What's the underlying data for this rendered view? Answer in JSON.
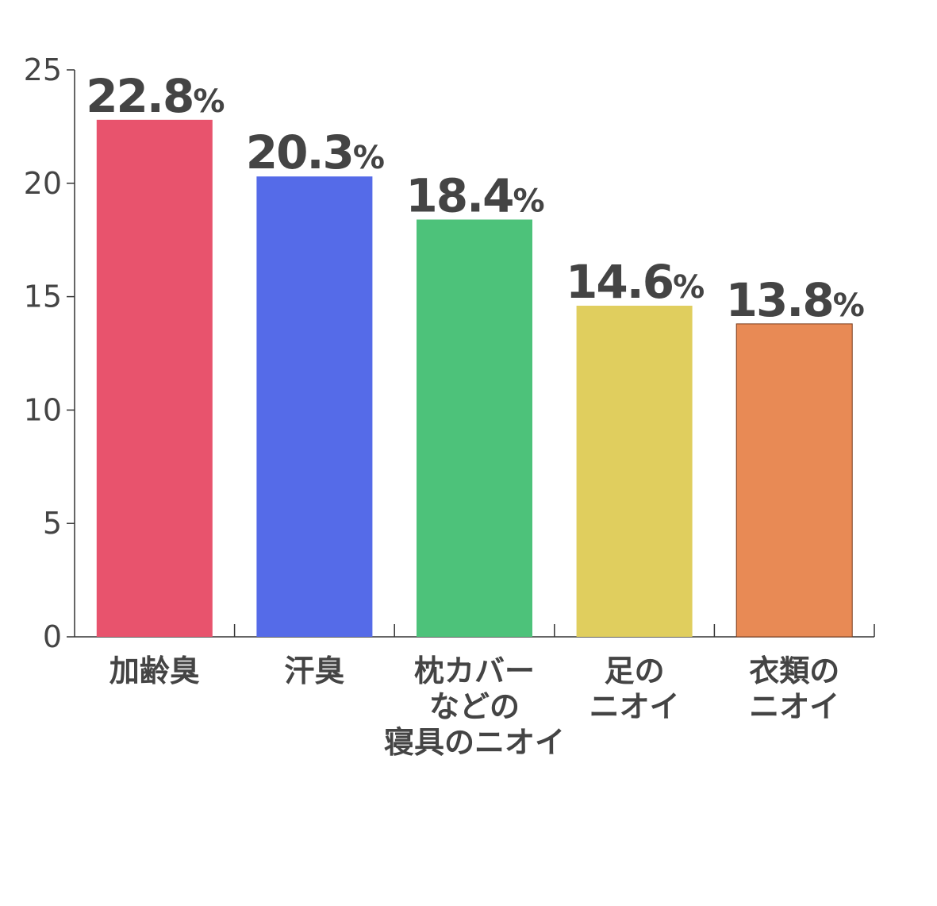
{
  "chart_data": {
    "type": "bar",
    "categories": [
      [
        "加齢臭"
      ],
      [
        "汗臭"
      ],
      [
        "枕カバー",
        "などの",
        "寝具のニオイ"
      ],
      [
        "足の",
        "ニオイ"
      ],
      [
        "衣類の",
        "ニオイ"
      ]
    ],
    "values": [
      22.8,
      20.3,
      18.4,
      14.6,
      13.8
    ],
    "data_labels": [
      "22.8",
      "20.3",
      "18.4",
      "14.6",
      "13.8"
    ],
    "data_label_suffix": "%",
    "colors": [
      "#E8536D",
      "#556BE8",
      "#4DC27A",
      "#E0CE5E",
      "#E88A55"
    ],
    "yticks": [
      0,
      5,
      10,
      15,
      20,
      25
    ],
    "ylim": [
      0,
      25
    ],
    "grid": false,
    "title": "",
    "xlabel": "",
    "ylabel": ""
  }
}
